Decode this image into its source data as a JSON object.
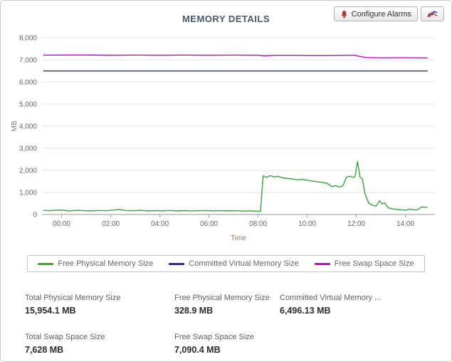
{
  "header": {
    "title": "MEMORY DETAILS",
    "configure_alarms_label": "Configure Alarms"
  },
  "chart_data": {
    "type": "line",
    "title": "MEMORY DETAILS",
    "xlabel": "Time",
    "ylabel": "MB",
    "xlim": [
      -0.8,
      15.2
    ],
    "ylim": [
      0,
      8000
    ],
    "grid": "horizontal",
    "legend_position": "bottom",
    "yticks": [
      0,
      1000,
      2000,
      3000,
      4000,
      5000,
      6000,
      7000,
      8000
    ],
    "ytick_labels": [
      "0",
      "1,000",
      "2,000",
      "3,000",
      "4,000",
      "5,000",
      "6,000",
      "7,000",
      "8,000"
    ],
    "xticks": [
      0,
      2,
      4,
      6,
      8,
      10,
      12,
      14
    ],
    "xtick_labels": [
      "00:00",
      "02:00",
      "04:00",
      "06:00",
      "08:00",
      "10:00",
      "12:00",
      "14:00"
    ],
    "series": [
      {
        "name": "Free Physical Memory Size",
        "color": "#3ca23c",
        "points": [
          [
            -0.75,
            190
          ],
          [
            -0.5,
            170
          ],
          [
            -0.2,
            195
          ],
          [
            0,
            200
          ],
          [
            0.3,
            160
          ],
          [
            0.6,
            190
          ],
          [
            0.9,
            175
          ],
          [
            1.2,
            160
          ],
          [
            1.5,
            185
          ],
          [
            1.8,
            170
          ],
          [
            2.1,
            200
          ],
          [
            2.35,
            230
          ],
          [
            2.6,
            180
          ],
          [
            2.9,
            170
          ],
          [
            3.2,
            190
          ],
          [
            3.5,
            160
          ],
          [
            3.8,
            175
          ],
          [
            4.1,
            165
          ],
          [
            4.4,
            185
          ],
          [
            4.7,
            160
          ],
          [
            5,
            175
          ],
          [
            5.3,
            165
          ],
          [
            5.6,
            170
          ],
          [
            5.9,
            180
          ],
          [
            6.2,
            165
          ],
          [
            6.5,
            175
          ],
          [
            6.8,
            160
          ],
          [
            7.1,
            175
          ],
          [
            7.4,
            155
          ],
          [
            7.7,
            165
          ],
          [
            8,
            145
          ],
          [
            8.1,
            155
          ],
          [
            8.2,
            1750
          ],
          [
            8.35,
            1680
          ],
          [
            8.5,
            1760
          ],
          [
            8.65,
            1700
          ],
          [
            8.8,
            1730
          ],
          [
            9,
            1660
          ],
          [
            9.2,
            1630
          ],
          [
            9.4,
            1610
          ],
          [
            9.6,
            1570
          ],
          [
            9.8,
            1590
          ],
          [
            10,
            1550
          ],
          [
            10.2,
            1520
          ],
          [
            10.4,
            1480
          ],
          [
            10.6,
            1450
          ],
          [
            10.8,
            1420
          ],
          [
            11,
            1260
          ],
          [
            11.15,
            1310
          ],
          [
            11.3,
            1240
          ],
          [
            11.45,
            1290
          ],
          [
            11.6,
            1700
          ],
          [
            11.75,
            1730
          ],
          [
            11.85,
            1680
          ],
          [
            11.95,
            1720
          ],
          [
            12.05,
            2400
          ],
          [
            12.15,
            1700
          ],
          [
            12.25,
            1600
          ],
          [
            12.35,
            950
          ],
          [
            12.5,
            520
          ],
          [
            12.65,
            420
          ],
          [
            12.8,
            380
          ],
          [
            12.95,
            620
          ],
          [
            13.05,
            480
          ],
          [
            13.15,
            530
          ],
          [
            13.3,
            300
          ],
          [
            13.45,
            260
          ],
          [
            13.6,
            235
          ],
          [
            13.8,
            215
          ],
          [
            14,
            195
          ],
          [
            14.2,
            245
          ],
          [
            14.35,
            205
          ],
          [
            14.5,
            215
          ],
          [
            14.65,
            340
          ],
          [
            14.8,
            330
          ],
          [
            14.9,
            310
          ]
        ]
      },
      {
        "name": "Committed Virtual Memory Size",
        "color": "#28289e",
        "points": [
          [
            -0.75,
            6496
          ],
          [
            14.9,
            6496
          ]
        ]
      },
      {
        "name": "Free Swap Space Size",
        "color": "#cc00cc",
        "points": [
          [
            -0.75,
            7215
          ],
          [
            1,
            7220
          ],
          [
            2,
            7210
          ],
          [
            3,
            7215
          ],
          [
            4,
            7210
          ],
          [
            5,
            7215
          ],
          [
            6,
            7210
          ],
          [
            7,
            7215
          ],
          [
            8,
            7210
          ],
          [
            8.3,
            7185
          ],
          [
            8.6,
            7205
          ],
          [
            9.5,
            7205
          ],
          [
            10.5,
            7200
          ],
          [
            11.5,
            7205
          ],
          [
            11.95,
            7210
          ],
          [
            12.15,
            7150
          ],
          [
            12.4,
            7105
          ],
          [
            13,
            7090
          ],
          [
            14,
            7092
          ],
          [
            14.9,
            7088
          ]
        ]
      }
    ]
  },
  "stats": {
    "rows": [
      [
        {
          "label": "Total Physical Memory Size",
          "value": "15,954.1 MB"
        },
        {
          "label": "Free Physical Memory Size",
          "value": "328.9 MB"
        },
        {
          "label": "Committed Virtual Memory ...",
          "value": "6,496.13 MB"
        }
      ],
      [
        {
          "label": "Total Swap Space Size",
          "value": "7,628 MB"
        },
        {
          "label": "Free Swap Space Size",
          "value": "7,090.4 MB"
        }
      ]
    ]
  }
}
